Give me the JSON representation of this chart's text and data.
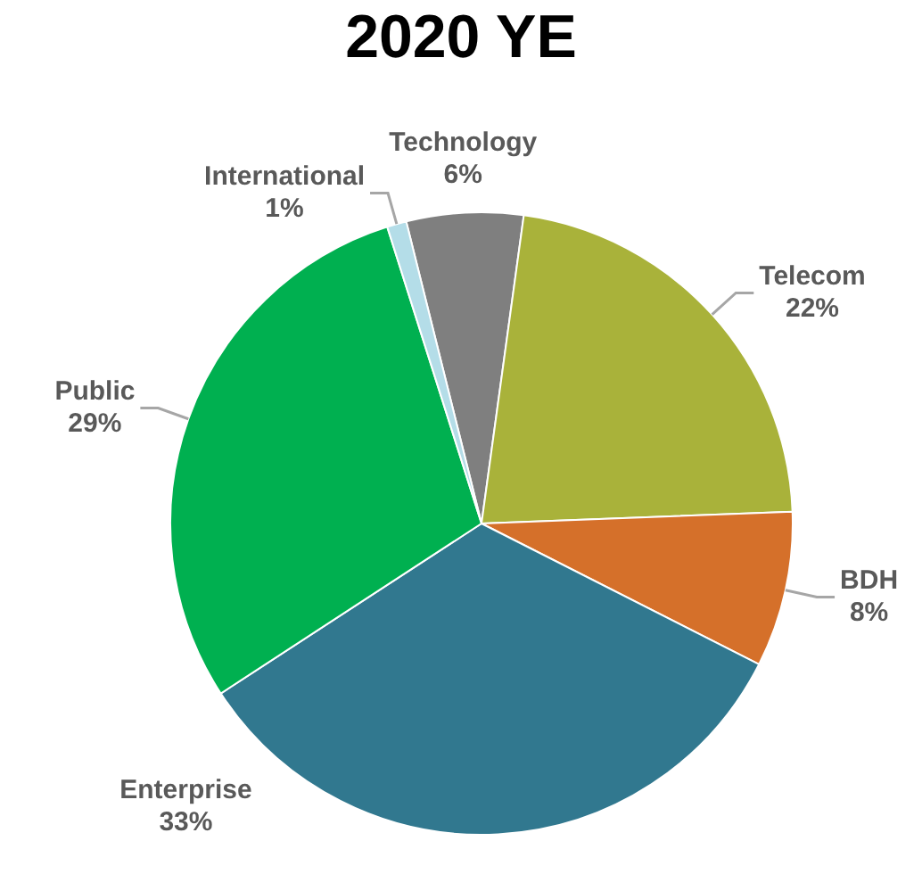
{
  "chart_data": {
    "type": "pie",
    "title": "2020 YE",
    "categories": [
      "Technology",
      "Telecom",
      "BDH",
      "Enterprise",
      "Public",
      "International"
    ],
    "values": [
      6,
      22,
      8,
      33,
      29,
      1
    ],
    "value_labels": [
      "6%",
      "22%",
      "8%",
      "33%",
      "29%",
      "1%"
    ],
    "colors": [
      "#7f7f7f",
      "#a9b23a",
      "#d5702a",
      "#31788f",
      "#00b050",
      "#b4dde8"
    ],
    "legend": false
  }
}
